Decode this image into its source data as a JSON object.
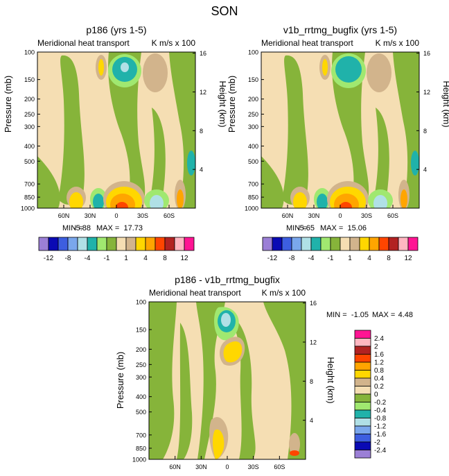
{
  "figure": {
    "season_title": "SON",
    "common": {
      "left_string": "Meridional heat transport",
      "right_string": "K m/s x 100",
      "ylabel": "Pressure (mb)",
      "ylabel_right": "Height (km)"
    }
  },
  "chart_data": [
    {
      "type": "heatmap",
      "title": "p186 (yrs 1-5)",
      "variable": "Meridional heat transport",
      "units": "K m/s x 100",
      "x_tick_labels": [
        "60N",
        "30N",
        "0",
        "30S",
        "60S"
      ],
      "x_tick_values": [
        60,
        30,
        0,
        -30,
        -60
      ],
      "x_range": [
        90,
        -90
      ],
      "y_tick_labels": [
        "100",
        "150",
        "200",
        "250",
        "300",
        "400",
        "500",
        "700",
        "850",
        "1000"
      ],
      "y_tick_values": [
        100,
        150,
        200,
        250,
        300,
        400,
        500,
        700,
        850,
        1000
      ],
      "y_range": [
        1000,
        100
      ],
      "y_scale": "log",
      "height_tick_labels": [
        "16",
        "12",
        "8",
        "4"
      ],
      "height_tick_values": [
        16,
        12,
        8,
        4
      ],
      "stats": {
        "min_label": "MIN =",
        "min": "-5.88",
        "max_label": "MAX =",
        "max": "17.73"
      },
      "contour_levels": [
        "-12",
        "-8",
        "-4",
        "-1",
        "1",
        "4",
        "8",
        "12"
      ]
    },
    {
      "type": "heatmap",
      "title": "v1b_rrtmg_bugfix (yrs 1-5)",
      "variable": "Meridional heat transport",
      "units": "K m/s x 100",
      "x_tick_labels": [
        "60N",
        "30N",
        "0",
        "30S",
        "60S"
      ],
      "x_tick_values": [
        60,
        30,
        0,
        -30,
        -60
      ],
      "x_range": [
        90,
        -90
      ],
      "y_tick_labels": [
        "100",
        "150",
        "200",
        "250",
        "300",
        "400",
        "500",
        "700",
        "850",
        "1000"
      ],
      "y_tick_values": [
        100,
        150,
        200,
        250,
        300,
        400,
        500,
        700,
        850,
        1000
      ],
      "y_range": [
        1000,
        100
      ],
      "y_scale": "log",
      "height_tick_labels": [
        "16",
        "12",
        "8",
        "4"
      ],
      "height_tick_values": [
        16,
        12,
        8,
        4
      ],
      "stats": {
        "min_label": "MIN =",
        "min": "-5.65",
        "max_label": "MAX =",
        "max": "15.06"
      },
      "contour_levels": [
        "-12",
        "-8",
        "-4",
        "-1",
        "1",
        "4",
        "8",
        "12"
      ]
    },
    {
      "type": "heatmap",
      "title": "p186 - v1b_rrtmg_bugfix",
      "variable": "Meridional heat transport",
      "units": "K m/s x 100",
      "x_tick_labels": [
        "60N",
        "30N",
        "0",
        "30S",
        "60S"
      ],
      "x_tick_values": [
        60,
        30,
        0,
        -30,
        -60
      ],
      "x_range": [
        90,
        -90
      ],
      "y_tick_labels": [
        "100",
        "150",
        "200",
        "250",
        "300",
        "400",
        "500",
        "700",
        "850",
        "1000"
      ],
      "y_tick_values": [
        100,
        150,
        200,
        250,
        300,
        400,
        500,
        700,
        850,
        1000
      ],
      "y_range": [
        1000,
        100
      ],
      "y_scale": "log",
      "height_tick_labels": [
        "16",
        "12",
        "8",
        "4"
      ],
      "height_tick_values": [
        16,
        12,
        8,
        4
      ],
      "stats": {
        "min_label": "MIN =",
        "min": "-1.05",
        "max_label": "MAX =",
        "max": "4.48"
      },
      "contour_levels": [
        "2.4",
        "2",
        "1.6",
        "1.2",
        "0.8",
        "0.4",
        "0.2",
        "0",
        "-0.2",
        "-0.4",
        "-0.8",
        "-1.2",
        "-1.6",
        "-2",
        "-2.4"
      ]
    }
  ],
  "colors": {
    "top_colorbar": [
      "#9b7fd6",
      "#0a0ab4",
      "#3d5ee0",
      "#7aa7ec",
      "#b0e0e6",
      "#20b2aa",
      "#a0e870",
      "#86b43a",
      "#f5deb3",
      "#d2b48c",
      "#ffd700",
      "#ffa500",
      "#ff4500",
      "#b22222",
      "#ffb6c1",
      "#ff1493"
    ],
    "diff_colorbar": [
      "#ff1493",
      "#ffb6c1",
      "#b22222",
      "#ff4500",
      "#ffa500",
      "#ffd700",
      "#d2b48c",
      "#f5deb3",
      "#86b43a",
      "#a0e870",
      "#20b2aa",
      "#b0e0e6",
      "#7aa7ec",
      "#3d5ee0",
      "#0a0ab4",
      "#9b7fd6"
    ],
    "background_fill": "#f5deb3",
    "green": "#86b43a",
    "light_green": "#a0e870",
    "teal": "#20b2aa",
    "light_blue": "#b0e0e6",
    "tan": "#d2b48c",
    "yellow": "#ffd700",
    "orange": "#ffa500",
    "red": "#ff4500"
  }
}
